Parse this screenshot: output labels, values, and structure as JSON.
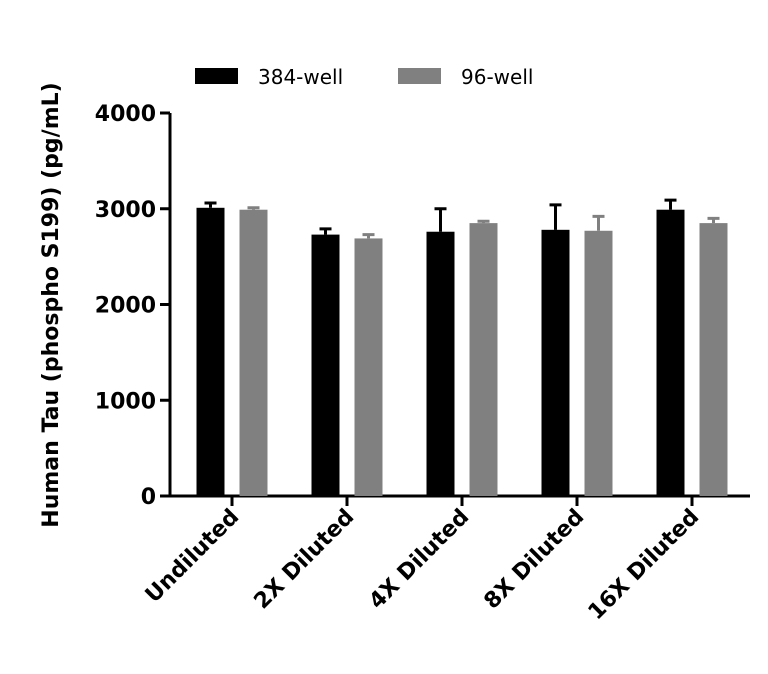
{
  "chart_data": {
    "type": "bar",
    "y_label": "Human Tau (phospho S199) (pg/mL)",
    "categories": [
      "Undiluted",
      "2X Diluted",
      "4X Diluted",
      "8X Diluted",
      "16X Diluted"
    ],
    "series": [
      {
        "name": "384-well",
        "color": "#000000",
        "values": [
          3010,
          2730,
          2760,
          2780,
          2990
        ],
        "errors": [
          50,
          60,
          240,
          260,
          100
        ]
      },
      {
        "name": "96-well",
        "color": "#808080",
        "values": [
          2990,
          2690,
          2850,
          2770,
          2850
        ],
        "errors": [
          20,
          40,
          20,
          150,
          50
        ]
      }
    ],
    "ylim": [
      0,
      4000
    ],
    "yticks": [
      0,
      1000,
      2000,
      3000,
      4000
    ],
    "grid": false
  }
}
